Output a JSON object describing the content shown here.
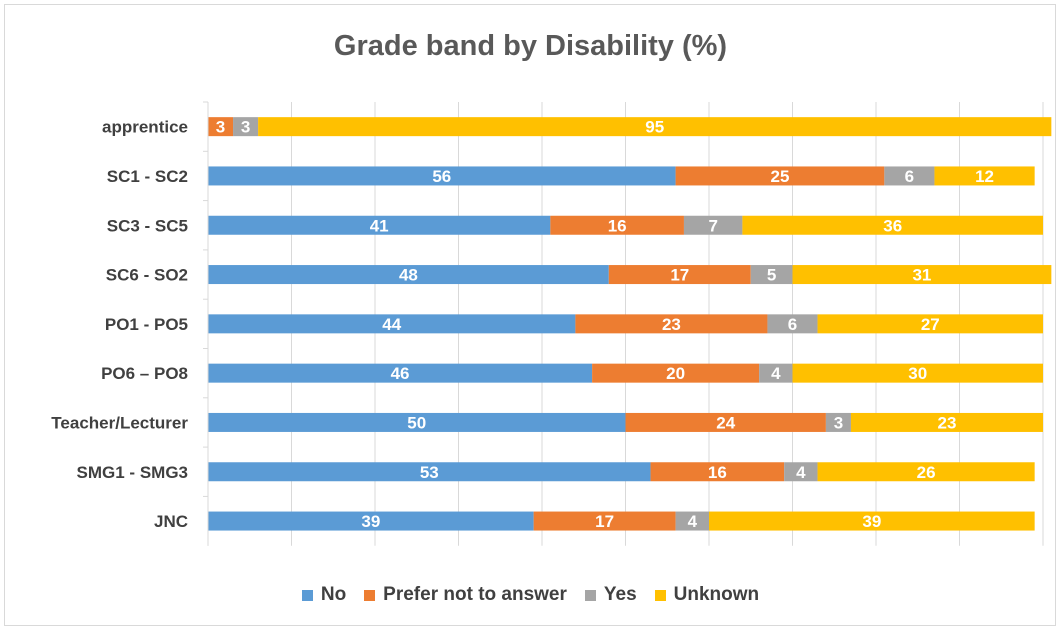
{
  "chart_data": {
    "type": "bar",
    "orientation": "horizontal",
    "stacked": true,
    "title": "Grade band by Disability (%)",
    "xlabel": "",
    "ylabel": "",
    "xlim": [
      0,
      100
    ],
    "categories": [
      "apprentice",
      "SC1 - SC2",
      "SC3 - SC5",
      "SC6 - SO2",
      "PO1 - PO5",
      "PO6 – PO8",
      "Teacher/Lecturer",
      "SMG1 - SMG3",
      "JNC"
    ],
    "series": [
      {
        "name": "No",
        "color": "#5b9bd5",
        "values": [
          0,
          56,
          41,
          48,
          44,
          46,
          50,
          53,
          39
        ],
        "labels": [
          "0",
          "56",
          "41",
          "48",
          "44",
          "46",
          "50",
          "53",
          "39"
        ]
      },
      {
        "name": "Prefer not to answer",
        "color": "#ed7d31",
        "values": [
          3,
          25,
          16,
          17,
          23,
          20,
          24,
          16,
          17
        ],
        "labels": [
          "3",
          "25",
          "16",
          "17",
          "23",
          "20",
          "24",
          "16",
          "17"
        ]
      },
      {
        "name": "Yes",
        "color": "#a5a5a5",
        "values": [
          3,
          6,
          7,
          5,
          6,
          4,
          3,
          4,
          4
        ],
        "labels": [
          "3",
          "6",
          "7",
          "5",
          "6",
          "4",
          "3",
          "4",
          "4"
        ]
      },
      {
        "name": "Unknown",
        "color": "#ffc000",
        "values": [
          95,
          12,
          36,
          31,
          27,
          30,
          23,
          26,
          39
        ],
        "labels": [
          "95",
          "12",
          "36",
          "31",
          "27",
          "30",
          "23",
          "26",
          "39"
        ]
      }
    ],
    "grid": true,
    "legend_position": "bottom"
  }
}
